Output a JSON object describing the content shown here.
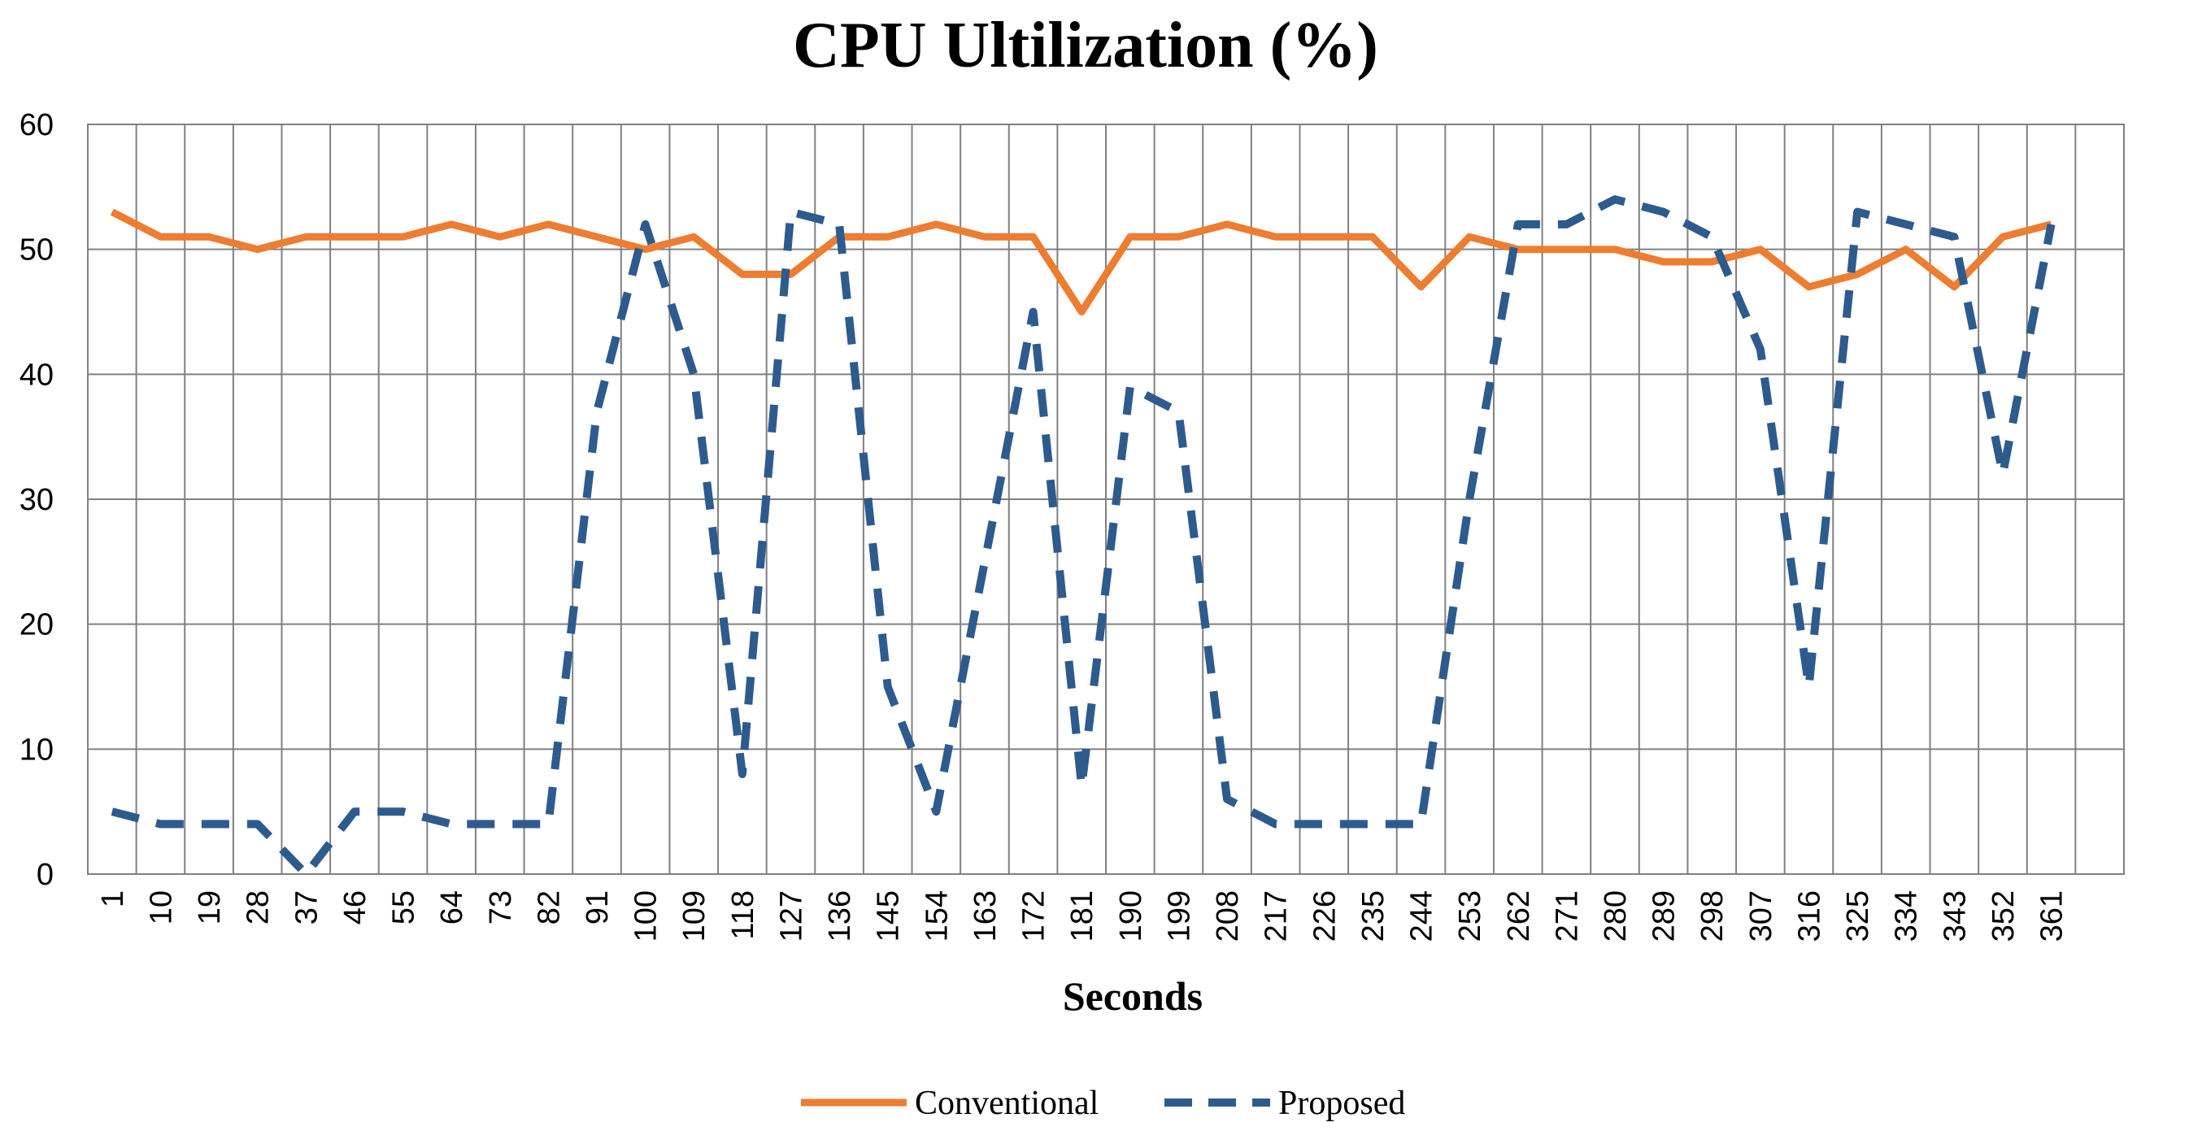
{
  "chart_data": {
    "type": "line",
    "title": "CPU Ultilization (%)",
    "xlabel": "Seconds",
    "ylabel": "",
    "ylim": [
      0,
      60
    ],
    "yticks": [
      0,
      10,
      20,
      30,
      40,
      50,
      60
    ],
    "grid": true,
    "legend_position": "bottom-center",
    "x": [
      1,
      10,
      19,
      28,
      37,
      46,
      55,
      64,
      73,
      82,
      91,
      100,
      109,
      118,
      127,
      136,
      145,
      154,
      163,
      172,
      181,
      190,
      199,
      208,
      217,
      226,
      235,
      244,
      253,
      262,
      271,
      280,
      289,
      298,
      307,
      316,
      325,
      334,
      343,
      352,
      361
    ],
    "series": [
      {
        "name": "Conventional",
        "color": "#ED7D31",
        "style": "solid",
        "values": [
          53,
          51,
          51,
          50,
          51,
          51,
          51,
          52,
          51,
          52,
          51,
          50,
          51,
          48,
          48,
          51,
          51,
          52,
          51,
          51,
          45,
          51,
          51,
          52,
          51,
          51,
          51,
          47,
          51,
          50,
          50,
          50,
          49,
          49,
          50,
          47,
          48,
          50,
          47,
          51,
          52
        ]
      },
      {
        "name": "Proposed",
        "color": "#2E5B8E",
        "style": "dashed",
        "values": [
          5,
          4,
          4,
          4,
          0,
          5,
          5,
          4,
          4,
          4,
          37,
          52,
          40,
          8,
          53,
          52,
          15,
          5,
          25,
          45,
          7,
          39,
          37,
          6,
          4,
          4,
          4,
          4,
          30,
          52,
          52,
          54,
          53,
          51,
          42,
          15,
          53,
          52,
          51,
          32,
          52
        ]
      }
    ]
  }
}
